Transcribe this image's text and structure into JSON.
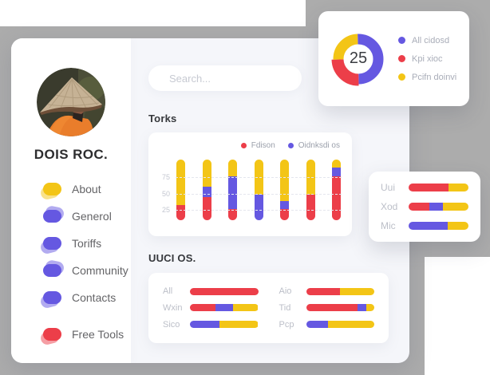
{
  "colors": {
    "red": "#ec3e49",
    "purple": "#6558e1",
    "yellow": "#f3c516",
    "backdrop_gray": "#acacac",
    "content_bg": "#f5f6fa",
    "card_white": "#ffffff"
  },
  "sidebar": {
    "profile_name": "DOIS ROC.",
    "menu": [
      {
        "label": "About",
        "slug": "about",
        "color": "yellow"
      },
      {
        "label": "Generol",
        "slug": "generol",
        "color": "purple"
      },
      {
        "label": "Toriffs",
        "slug": "toriffs",
        "color": "purple"
      },
      {
        "label": "Community",
        "slug": "community",
        "color": "purple"
      },
      {
        "label": "Contacts",
        "slug": "contacts",
        "color": "purple"
      }
    ],
    "footer_menu": [
      {
        "label": "Free Tools",
        "slug": "free-tools",
        "color": "red"
      }
    ]
  },
  "search": {
    "placeholder": "Search...",
    "value": ""
  },
  "sections": {
    "torks_title": "Torks",
    "uuci_title": "UUCI OS."
  },
  "chart_data": [
    {
      "type": "donut",
      "center_label": "25",
      "legend_position": "right",
      "slices": [
        {
          "label": "All cidosd",
          "value": 50,
          "color": "purple",
          "emphasis": false
        },
        {
          "label": "Kpi xioc",
          "value": 25,
          "color": "red",
          "emphasis": true
        },
        {
          "label": "Pcifn doinvi",
          "value": 25,
          "color": "yellow",
          "emphasis": false
        }
      ]
    },
    {
      "type": "bar",
      "stacked": true,
      "title": "Torks",
      "yticks": [
        25,
        50,
        75
      ],
      "ylim": [
        0,
        100
      ],
      "grid": "dashed-horizontal",
      "categories": [
        "",
        "",
        "",
        "",
        "",
        "",
        ""
      ],
      "series": [
        {
          "name": "Fdison",
          "color": "red",
          "in_legend": true,
          "values": [
            25,
            38,
            18,
            0,
            18,
            42,
            72
          ]
        },
        {
          "name": "Oidnksdi os",
          "color": "purple",
          "in_legend": true,
          "values": [
            0,
            17,
            55,
            42,
            13,
            0,
            15
          ]
        },
        {
          "name": "",
          "color": "yellow",
          "in_legend": false,
          "values": [
            75,
            45,
            27,
            58,
            69,
            58,
            13
          ]
        }
      ]
    },
    {
      "type": "hbar",
      "title": "UUCI OS.",
      "columns": 2,
      "rows": [
        {
          "label": "All",
          "segments": [
            {
              "color": "red",
              "value": 100
            }
          ]
        },
        {
          "label": "Wxin",
          "segments": [
            {
              "color": "red",
              "value": 37
            },
            {
              "color": "purple",
              "value": 26
            },
            {
              "color": "yellow",
              "value": 37
            }
          ]
        },
        {
          "label": "Sico",
          "segments": [
            {
              "color": "purple",
              "value": 43
            },
            {
              "color": "yellow",
              "value": 57
            }
          ]
        },
        {
          "label": "Aio",
          "segments": [
            {
              "color": "red",
              "value": 50
            },
            {
              "color": "yellow",
              "value": 50
            }
          ]
        },
        {
          "label": "Tid",
          "segments": [
            {
              "color": "red",
              "value": 75
            },
            {
              "color": "purple",
              "value": 13
            },
            {
              "color": "yellow",
              "value": 12
            }
          ]
        },
        {
          "label": "Pcp",
          "segments": [
            {
              "color": "purple",
              "value": 32
            },
            {
              "color": "yellow",
              "value": 68
            }
          ]
        }
      ]
    },
    {
      "type": "hbar",
      "title": "",
      "columns": 1,
      "rows": [
        {
          "label": "Uui",
          "segments": [
            {
              "color": "red",
              "value": 66
            },
            {
              "color": "yellow",
              "value": 34
            }
          ]
        },
        {
          "label": "Xod",
          "segments": [
            {
              "color": "red",
              "value": 34
            },
            {
              "color": "purple",
              "value": 23
            },
            {
              "color": "yellow",
              "value": 43
            }
          ]
        },
        {
          "label": "Mic",
          "segments": [
            {
              "color": "purple",
              "value": 65
            },
            {
              "color": "yellow",
              "value": 35
            }
          ]
        }
      ]
    }
  ]
}
